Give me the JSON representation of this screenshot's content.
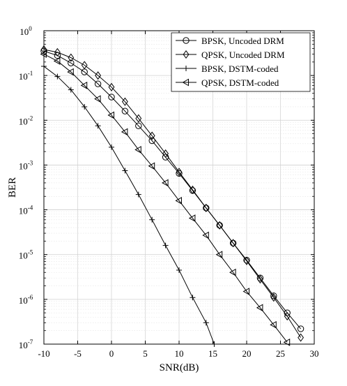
{
  "chart_data": {
    "type": "line",
    "title": "",
    "xlabel": "SNR(dB)",
    "ylabel": "BER",
    "xlim": [
      -10,
      30
    ],
    "ylim": [
      1e-07,
      1
    ],
    "yscale": "log",
    "grid": true,
    "legend_position": "top-right",
    "xticks": [
      -10,
      -5,
      0,
      5,
      10,
      15,
      20,
      25,
      30
    ],
    "yticks": [
      {
        "value": 1,
        "base": "10",
        "exp": "0"
      },
      {
        "value": 0.1,
        "base": "10",
        "exp": "-1"
      },
      {
        "value": 0.01,
        "base": "10",
        "exp": "-2"
      },
      {
        "value": 0.001,
        "base": "10",
        "exp": "-3"
      },
      {
        "value": 0.0001,
        "base": "10",
        "exp": "-4"
      },
      {
        "value": 1e-05,
        "base": "10",
        "exp": "-5"
      },
      {
        "value": 1e-06,
        "base": "10",
        "exp": "-6"
      },
      {
        "value": 1e-07,
        "base": "10",
        "exp": "-7"
      }
    ],
    "series": [
      {
        "name": "BPSK, Uncoded DRM",
        "marker": "circle",
        "x": [
          -10,
          -8,
          -6,
          -4,
          -2,
          0,
          2,
          4,
          6,
          8,
          10,
          12,
          14,
          16,
          18,
          20,
          22,
          24,
          26,
          28
        ],
        "y": [
          0.35,
          0.28,
          0.19,
          0.12,
          0.065,
          0.033,
          0.016,
          0.0075,
          0.0035,
          0.0015,
          0.00065,
          0.00027,
          0.00011,
          4.5e-05,
          1.8e-05,
          7.5e-06,
          3e-06,
          1.2e-06,
          5e-07,
          2.2e-07
        ]
      },
      {
        "name": "QPSK, Uncoded DRM",
        "marker": "diamond",
        "x": [
          -10,
          -8,
          -6,
          -4,
          -2,
          0,
          2,
          4,
          6,
          8,
          10,
          12,
          14,
          16,
          18,
          20,
          22,
          24,
          26,
          28
        ],
        "y": [
          0.38,
          0.33,
          0.25,
          0.17,
          0.1,
          0.055,
          0.026,
          0.011,
          0.0045,
          0.0018,
          0.0007,
          0.00028,
          0.00011,
          4.5e-05,
          1.8e-05,
          7.2e-06,
          2.8e-06,
          1.1e-06,
          4.2e-07,
          1.4e-07
        ]
      },
      {
        "name": "BPSK, DSTM-coded",
        "marker": "plus",
        "x": [
          -10,
          -8,
          -6,
          -4,
          -2,
          0,
          2,
          4,
          6,
          8,
          10,
          12,
          14,
          15.2
        ],
        "y": [
          0.16,
          0.095,
          0.048,
          0.02,
          0.0075,
          0.0025,
          0.00075,
          0.00022,
          6e-05,
          1.6e-05,
          4.5e-06,
          1.1e-06,
          3e-07,
          1e-07
        ]
      },
      {
        "name": "QPSK, DSTM-coded",
        "marker": "triangle-left",
        "x": [
          -10,
          -8,
          -6,
          -4,
          -2,
          0,
          2,
          4,
          6,
          8,
          10,
          12,
          14,
          16,
          18,
          20,
          22,
          24,
          26
        ],
        "y": [
          0.3,
          0.21,
          0.12,
          0.06,
          0.03,
          0.013,
          0.0055,
          0.0022,
          0.00095,
          0.0004,
          0.00016,
          6.5e-05,
          2.7e-05,
          1e-05,
          4e-06,
          1.5e-06,
          6.5e-07,
          2.7e-07,
          1.1e-07
        ]
      }
    ]
  }
}
